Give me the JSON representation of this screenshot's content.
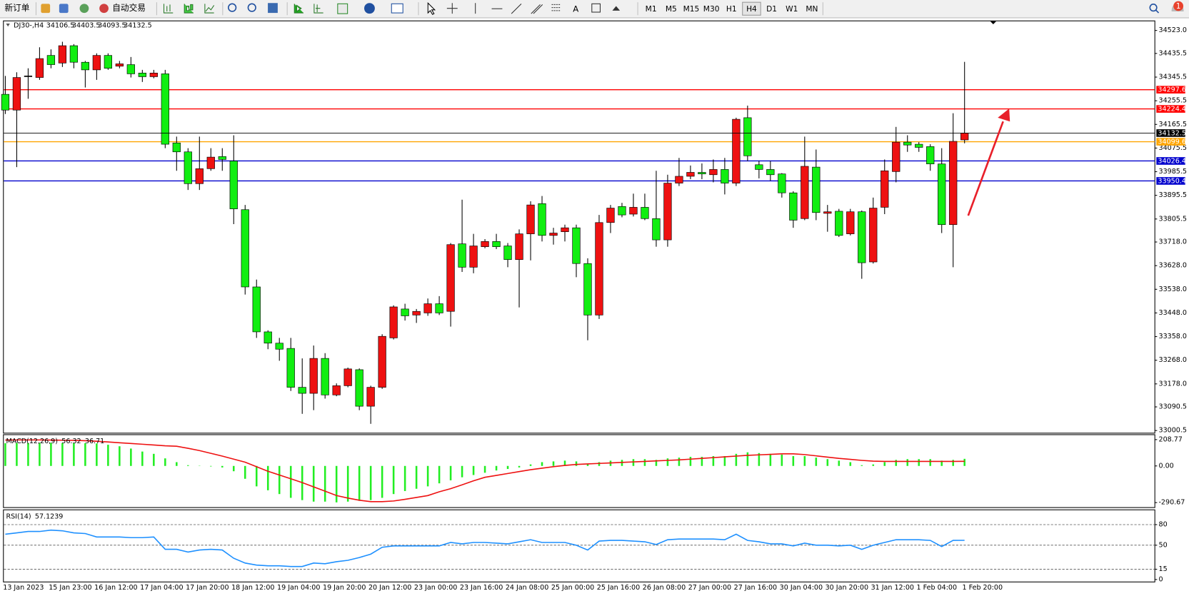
{
  "toolbar": {
    "new_order": "新订单",
    "auto_trading": "自动交易",
    "timeframes": [
      "M1",
      "M5",
      "M15",
      "M30",
      "H1",
      "H4",
      "D1",
      "W1",
      "MN"
    ],
    "active_timeframe": "H4",
    "notifications": 1
  },
  "chart_data": [
    {
      "type": "candlestick",
      "title": "DJ30-,H4",
      "categories": [
        "13 Jan 2023",
        null,
        null,
        null,
        "15 Jan 23:00",
        null,
        null,
        null,
        "16 Jan 12:00",
        null,
        null,
        null,
        "17 Jan 04:00",
        null,
        null,
        null,
        "17 Jan 20:00",
        null,
        null,
        null,
        "18 Jan 12:00",
        null,
        null,
        null,
        "19 Jan 04:00",
        null,
        null,
        null,
        "19 Jan 20:00",
        null,
        null,
        null,
        "20 Jan 12:00",
        null,
        null,
        null,
        "23 Jan 00:00",
        null,
        null,
        null,
        "23 Jan 16:00",
        null,
        null,
        null,
        "24 Jan 08:00",
        null,
        null,
        null,
        "25 Jan 00:00",
        null,
        null,
        null,
        "25 Jan 16:00",
        null,
        null,
        null,
        "26 Jan 08:00",
        null,
        null,
        null,
        "27 Jan 00:00",
        null,
        null,
        null,
        "27 Jan 16:00",
        null,
        null,
        null,
        "30 Jan 04:00",
        null,
        null,
        null,
        "30 Jan 20:00",
        null,
        null,
        null,
        "31 Jan 12:00",
        null,
        null,
        null,
        "1 Feb 04:00",
        null,
        null,
        null,
        "1 Feb 20:00"
      ],
      "open": [
        34280,
        34220,
        34350,
        34344,
        34428,
        34399,
        34465,
        34402,
        34373,
        34428,
        34387,
        34393,
        34361,
        34347,
        34358,
        34095,
        34061,
        33940,
        33997,
        34043,
        34026,
        33841,
        33547,
        33376,
        33333,
        33313,
        33165,
        33142,
        33275,
        33136,
        33171,
        33232,
        33093,
        33165,
        33353,
        33463,
        33440,
        33448,
        33483,
        33454,
        33711,
        33622,
        33700,
        33720,
        33703,
        33651,
        33749,
        33864,
        33743,
        33757,
        33772,
        33636,
        33440,
        33792,
        33853,
        33824,
        33850,
        33807,
        33726,
        33942,
        33968,
        33983,
        33974,
        33994,
        33942,
        34191,
        34012,
        33994,
        33977,
        33905,
        33807,
        34003,
        33827,
        33835,
        33749,
        33833,
        33642,
        33850,
        33986,
        34098,
        34090,
        34081,
        34015,
        33784,
        34106.5
      ],
      "high": [
        34350,
        34364,
        34379,
        34459,
        34451,
        34480,
        34471,
        34407,
        34436,
        34436,
        34407,
        34422,
        34373,
        34373,
        34373,
        34119,
        34075,
        34119,
        34075,
        34075,
        34124,
        33859,
        33575,
        33382,
        33353,
        33353,
        33275,
        33324,
        33295,
        33180,
        33240,
        33237,
        33171,
        33367,
        33477,
        33483,
        33463,
        33503,
        33512,
        33714,
        33879,
        33749,
        33729,
        33749,
        33714,
        33766,
        33873,
        33893,
        33772,
        33784,
        33784,
        33656,
        33821,
        33859,
        33867,
        33902,
        33902,
        33989,
        33974,
        34038,
        34009,
        34017,
        34032,
        34038,
        34191,
        34237,
        34026,
        34026,
        33980,
        33911,
        34119,
        34070,
        33859,
        33844,
        33844,
        33838,
        33887,
        34032,
        34156,
        34124,
        34098,
        34090,
        34075,
        34208,
        34403.5
      ],
      "low": [
        34205,
        34003,
        34263,
        34335,
        34379,
        34384,
        34379,
        34306,
        34335,
        34373,
        34379,
        34344,
        34327,
        34341,
        34075,
        33989,
        33916,
        33916,
        33989,
        33989,
        33786,
        33518,
        33353,
        33310,
        33266,
        33151,
        33064,
        33078,
        33122,
        33131,
        33165,
        33078,
        33026,
        33159,
        33347,
        33419,
        33410,
        33437,
        33440,
        33396,
        33604,
        33599,
        33694,
        33691,
        33622,
        33469,
        33648,
        33720,
        33708,
        33720,
        33584,
        33344,
        33425,
        33752,
        33812,
        33815,
        33801,
        33700,
        33700,
        33931,
        33957,
        33957,
        33945,
        33899,
        33931,
        34026,
        33960,
        33951,
        33887,
        33772,
        33801,
        33801,
        33757,
        33737,
        33743,
        33578,
        33636,
        33824,
        33945,
        34061,
        34061,
        33989,
        33752,
        33622,
        34093.5
      ],
      "close": [
        34220,
        34344,
        34350,
        34416,
        34393,
        34465,
        34402,
        34373,
        34428,
        34379,
        34396,
        34358,
        34347,
        34361,
        34090,
        34061,
        33940,
        33997,
        34041,
        34032,
        33844,
        33547,
        33376,
        33333,
        33310,
        33165,
        33142,
        33275,
        33136,
        33171,
        33235,
        33093,
        33165,
        33359,
        33471,
        33437,
        33454,
        33483,
        33448,
        33708,
        33622,
        33703,
        33720,
        33700,
        33651,
        33749,
        33859,
        33743,
        33752,
        33772,
        33636,
        33440,
        33792,
        33847,
        33821,
        33850,
        33807,
        33726,
        33942,
        33968,
        33983,
        33977,
        33994,
        33942,
        34185,
        34046,
        33994,
        33974,
        33905,
        33801,
        34006,
        33830,
        33833,
        33743,
        33833,
        33639,
        33847,
        33989,
        34098,
        34087,
        34078,
        34015,
        33784,
        34101,
        34132.5
      ],
      "up_color": "#ee1111",
      "down_color": "#11ee11",
      "ylim": [
        32992,
        34558
      ],
      "yticks": [
        {
          "value": 34523,
          "label": "34523.0"
        },
        34435.5,
        34345.5,
        34255.5,
        34165.5,
        34075.5,
        33985.5,
        33895.5,
        33805.5,
        {
          "value": 33718,
          "label": "33718.0"
        },
        {
          "value": 33628,
          "label": "33628.0"
        },
        {
          "value": 33538,
          "label": "33538.0"
        },
        {
          "value": 33448,
          "label": "33448.0"
        },
        {
          "value": 33358,
          "label": "33358.0"
        },
        {
          "value": 33268,
          "label": "33268.0"
        },
        {
          "value": 33178,
          "label": "33178.0"
        },
        33090.5,
        33000.5
      ],
      "levels": [
        {
          "value": 34297.6,
          "color": "#ff0000"
        },
        {
          "value": 34224.4,
          "color": "#ff0000"
        },
        {
          "value": 34099.6,
          "color": "#ffa500"
        },
        {
          "value": 34026.4,
          "color": "#0000cd"
        },
        {
          "value": 33950.4,
          "color": "#0000cd"
        }
      ]
    },
    {
      "type": "macd",
      "title": "MACD(12,26,9)",
      "histogram": [
        180,
        182,
        182,
        182,
        183,
        182,
        181,
        180,
        178,
        168,
        156,
        138,
        114,
        96,
        60,
        30,
        6,
        2,
        -4,
        -12,
        -42,
        -102,
        -162,
        -193,
        -223,
        -253,
        -271,
        -283,
        -283,
        -289,
        -283,
        -277,
        -271,
        -253,
        -223,
        -199,
        -181,
        -162,
        -138,
        -114,
        -90,
        -72,
        -54,
        -36,
        -24,
        -12,
        12,
        30,
        36,
        42,
        36,
        18,
        30,
        42,
        48,
        54,
        54,
        48,
        60,
        66,
        72,
        72,
        78,
        78,
        96,
        108,
        102,
        96,
        90,
        78,
        78,
        66,
        54,
        42,
        30,
        6,
        12,
        30,
        48,
        54,
        54,
        54,
        42,
        48,
        56.32
      ],
      "signal": [
        205,
        206,
        206,
        206,
        205,
        204,
        203,
        200,
        196,
        190,
        184,
        178,
        172,
        166,
        160,
        156,
        140,
        122,
        100,
        78,
        54,
        30,
        -6,
        -42,
        -72,
        -102,
        -132,
        -166,
        -200,
        -235,
        -255,
        -272,
        -283,
        -283,
        -278,
        -265,
        -250,
        -235,
        -205,
        -180,
        -150,
        -118,
        -90,
        -75,
        -60,
        -45,
        -30,
        -18,
        -6,
        4,
        12,
        16,
        20,
        24,
        28,
        32,
        36,
        40,
        44,
        48,
        54,
        60,
        66,
        72,
        78,
        84,
        88,
        92,
        96,
        96,
        90,
        80,
        70,
        60,
        52,
        44,
        38,
        36,
        36,
        36,
        36,
        36,
        36,
        36,
        36.71
      ],
      "histogram_color": "#22ee22",
      "signal_color": "#ee1111",
      "ylim": [
        -327,
        245
      ],
      "yticks": [
        208.77,
        {
          "value": 0,
          "label": "0.00"
        },
        -290.67
      ]
    },
    {
      "type": "line",
      "title": "RSI(14)",
      "values": [
        66,
        68,
        70,
        70,
        72,
        71,
        68,
        67,
        62,
        62,
        62,
        61,
        61,
        62,
        44,
        44,
        40,
        43,
        44,
        43,
        31,
        24,
        21,
        20,
        20,
        19,
        19,
        24,
        23,
        26,
        28,
        32,
        37,
        47,
        49,
        49,
        49,
        49,
        49,
        54,
        52,
        54,
        54,
        53,
        52,
        55,
        58,
        54,
        54,
        54,
        50,
        43,
        56,
        57,
        57,
        56,
        55,
        51,
        58,
        59,
        59,
        59,
        59,
        58,
        66,
        57,
        55,
        52,
        52,
        49,
        53,
        50,
        50,
        49,
        50,
        44,
        50,
        54,
        58,
        58,
        58,
        57,
        48,
        57,
        57.1239
      ],
      "color": "#1e90ff",
      "ylim": [
        -3,
        101
      ],
      "yticks": [
        80,
        50,
        15,
        0
      ],
      "levels": [
        80,
        50,
        15
      ]
    }
  ]
}
